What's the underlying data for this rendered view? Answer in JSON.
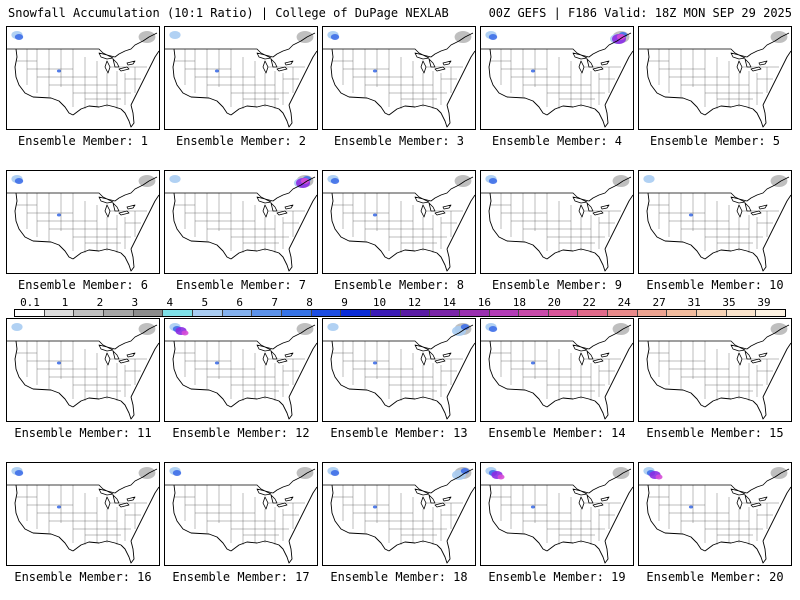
{
  "header": {
    "left": "Snowfall Accumulation (10:1 Ratio) | College of DuPage NEXLAB",
    "right": "00Z GEFS | F186 Valid: 18Z MON SEP 29 2025"
  },
  "panels": [
    {
      "label": "Ensemble Member: 1",
      "nw": 2,
      "ne": 1,
      "rockies": 1
    },
    {
      "label": "Ensemble Member: 2",
      "nw": 1,
      "ne": 1,
      "rockies": 1
    },
    {
      "label": "Ensemble Member: 3",
      "nw": 2,
      "ne": 1,
      "rockies": 1
    },
    {
      "label": "Ensemble Member: 4",
      "nw": 2,
      "ne": 3,
      "rockies": 1
    },
    {
      "label": "Ensemble Member: 5",
      "nw": 0,
      "ne": 1,
      "rockies": 0
    },
    {
      "label": "Ensemble Member: 6",
      "nw": 2,
      "ne": 1,
      "rockies": 1
    },
    {
      "label": "Ensemble Member: 7",
      "nw": 1,
      "ne": 3,
      "rockies": 0
    },
    {
      "label": "Ensemble Member: 8",
      "nw": 2,
      "ne": 1,
      "rockies": 1
    },
    {
      "label": "Ensemble Member: 9",
      "nw": 2,
      "ne": 1,
      "rockies": 0
    },
    {
      "label": "Ensemble Member: 10",
      "nw": 1,
      "ne": 1,
      "rockies": 1
    },
    {
      "label": "Ensemble Member: 11",
      "nw": 1,
      "ne": 1,
      "rockies": 1
    },
    {
      "label": "Ensemble Member: 12",
      "nw": 3,
      "ne": 1,
      "rockies": 1
    },
    {
      "label": "Ensemble Member: 13",
      "nw": 1,
      "ne": 2,
      "rockies": 1
    },
    {
      "label": "Ensemble Member: 14",
      "nw": 2,
      "ne": 1,
      "rockies": 1
    },
    {
      "label": "Ensemble Member: 15",
      "nw": 0,
      "ne": 1,
      "rockies": 0
    },
    {
      "label": "Ensemble Member: 16",
      "nw": 2,
      "ne": 1,
      "rockies": 1
    },
    {
      "label": "Ensemble Member: 17",
      "nw": 2,
      "ne": 1,
      "rockies": 0
    },
    {
      "label": "Ensemble Member: 18",
      "nw": 2,
      "ne": 2,
      "rockies": 1
    },
    {
      "label": "Ensemble Member: 19",
      "nw": 3,
      "ne": 1,
      "rockies": 1
    },
    {
      "label": "Ensemble Member: 20",
      "nw": 3,
      "ne": 1,
      "rockies": 1
    }
  ],
  "colorbar": {
    "ticks": [
      "0.1",
      "1",
      "2",
      "3",
      "4",
      "5",
      "6",
      "7",
      "8",
      "9",
      "10",
      "12",
      "14",
      "16",
      "18",
      "20",
      "22",
      "24",
      "27",
      "31",
      "35",
      "39"
    ],
    "colors": [
      "#ffffff",
      "#dddddd",
      "#c0c0c0",
      "#a6a6a6",
      "#8c8c8c",
      "#7ee0e8",
      "#a9ccf2",
      "#84b1ee",
      "#5c92ea",
      "#3673e6",
      "#1d4ee3",
      "#0a2cd8",
      "#3b1bb6",
      "#5a1ca4",
      "#7a25a8",
      "#9a30b0",
      "#b23bb6",
      "#c84aaa",
      "#d9559a",
      "#e06a8a",
      "#e88a8a",
      "#eca390",
      "#f2bc9e",
      "#f6d2b4",
      "#fae4cc",
      "#fdf2e2"
    ]
  },
  "palette": {
    "gray": "#b8b8b8",
    "light_blue": "#a9ccf2",
    "blue": "#3f6fe8",
    "purple": "#8a2be2",
    "magenta": "#d64bd6"
  }
}
